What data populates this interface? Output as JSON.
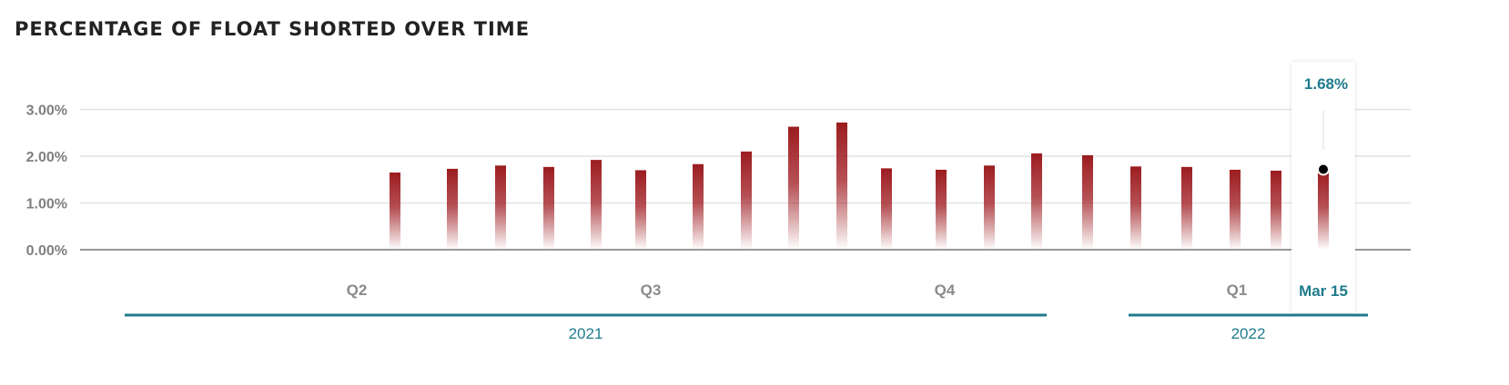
{
  "page_title": "PERCENTAGE OF FLOAT SHORTED OVER TIME",
  "chart_data": {
    "type": "bar",
    "title": "PERCENTAGE OF FLOAT SHORTED OVER TIME",
    "ylabel": "",
    "xlabel": "",
    "ylim": [
      0,
      3.0
    ],
    "yticks": [
      "0.00%",
      "1.00%",
      "2.00%",
      "3.00%"
    ],
    "quarter_labels": [
      "Q2",
      "Q3",
      "Q4",
      "Q1"
    ],
    "year_labels": [
      "2021",
      "2022"
    ],
    "bar_color": "#9b1c1f",
    "accent_color": "#1f7b8c",
    "grid": true,
    "values": [
      1.65,
      1.73,
      1.8,
      1.77,
      1.92,
      1.7,
      1.83,
      2.1,
      2.63,
      2.72,
      1.74,
      1.71,
      1.8,
      2.06,
      2.02,
      1.78,
      1.77,
      1.71,
      1.69,
      1.68
    ],
    "tooltip": {
      "value": "1.68%",
      "date": "Mar 15"
    }
  }
}
